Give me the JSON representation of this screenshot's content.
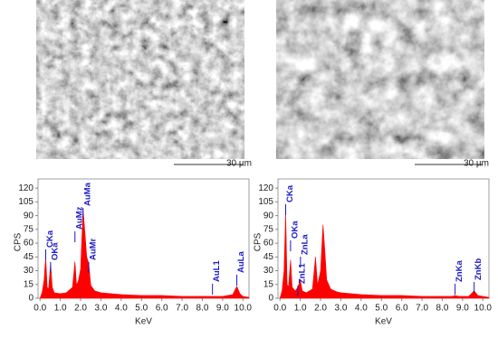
{
  "images": [
    {
      "scale_label": "30 µm"
    },
    {
      "scale_label": "30 µm"
    }
  ],
  "chart_data": [
    {
      "type": "area",
      "color": "#ff0000",
      "annotation_color": "#1a1ac8",
      "x_label": "KeV",
      "y_label": "CPS",
      "xlim": [
        -0.1,
        10.3
      ],
      "ylim": [
        0,
        130
      ],
      "xticks": [
        {
          "value": 0,
          "label": "0.0"
        },
        {
          "value": 1,
          "label": "1.0"
        },
        {
          "value": 2,
          "label": "2.0"
        },
        {
          "value": 3,
          "label": "3.0"
        },
        {
          "value": 4,
          "label": "4.0"
        },
        {
          "value": 5,
          "label": "5.0"
        },
        {
          "value": 6,
          "label": "6.0"
        },
        {
          "value": 7,
          "label": "7.0"
        },
        {
          "value": 8,
          "label": "8.0"
        },
        {
          "value": 9,
          "label": "9.0"
        },
        {
          "value": 10,
          "label": "10.0"
        }
      ],
      "yticks": [
        0,
        15,
        30,
        45,
        60,
        75,
        90,
        105,
        120
      ],
      "x": [
        0,
        0.1,
        0.2,
        0.28,
        0.35,
        0.42,
        0.52,
        0.6,
        0.7,
        1.0,
        1.3,
        1.6,
        1.72,
        1.8,
        1.9,
        2.0,
        2.12,
        2.2,
        2.3,
        2.4,
        2.5,
        2.7,
        3.0,
        3.5,
        4.0,
        5.0,
        6.0,
        7.0,
        8.0,
        8.5,
        9.0,
        9.5,
        9.7,
        9.85,
        10.0,
        10.3
      ],
      "values": [
        0,
        6,
        20,
        45,
        12,
        10,
        38,
        12,
        6,
        5,
        6,
        12,
        40,
        14,
        20,
        32,
        97,
        75,
        45,
        38,
        14,
        8,
        6,
        5,
        4,
        3,
        3,
        2,
        2,
        2,
        2,
        4,
        13,
        5,
        2,
        1
      ],
      "annotations": [
        {
          "label": "CKa",
          "x": 0.28
        },
        {
          "label": "OKa",
          "x": 0.52
        },
        {
          "label": "AuMz",
          "x": 1.72
        },
        {
          "label": "AuMa",
          "x": 2.12
        },
        {
          "label": "AuMr",
          "x": 2.4
        },
        {
          "label": "AuL1",
          "x": 8.5
        },
        {
          "label": "AuLa",
          "x": 9.7
        }
      ]
    },
    {
      "type": "area",
      "color": "#ff0000",
      "annotation_color": "#1a1ac8",
      "x_label": "KeV",
      "y_label": "CPS",
      "xlim": [
        -0.1,
        10.3
      ],
      "ylim": [
        0,
        130
      ],
      "xticks": [
        {
          "value": 0,
          "label": "0.0"
        },
        {
          "value": 1,
          "label": "1.0"
        },
        {
          "value": 2,
          "label": "2.0"
        },
        {
          "value": 3,
          "label": "3.0"
        },
        {
          "value": 4,
          "label": "4.0"
        },
        {
          "value": 5,
          "label": "5.0"
        },
        {
          "value": 6,
          "label": "6.0"
        },
        {
          "value": 7,
          "label": "7.0"
        },
        {
          "value": 8,
          "label": "8.0"
        },
        {
          "value": 9,
          "label": "9.0"
        },
        {
          "value": 10,
          "label": "10.0"
        }
      ],
      "yticks": [
        0,
        15,
        30,
        45,
        60,
        75,
        90,
        105,
        120
      ],
      "x": [
        0,
        0.1,
        0.2,
        0.28,
        0.35,
        0.42,
        0.52,
        0.6,
        0.75,
        0.88,
        1.0,
        1.1,
        1.3,
        1.6,
        1.75,
        1.85,
        2.0,
        2.12,
        2.2,
        2.3,
        2.5,
        2.8,
        3.0,
        4.0,
        5.0,
        6.0,
        7.0,
        8.0,
        8.5,
        8.63,
        8.8,
        9.3,
        9.57,
        9.75,
        10.0,
        10.3
      ],
      "values": [
        0,
        8,
        30,
        93,
        15,
        12,
        42,
        12,
        8,
        12,
        20,
        8,
        6,
        10,
        45,
        14,
        30,
        80,
        55,
        20,
        10,
        7,
        6,
        4,
        3,
        3,
        2,
        2,
        2,
        3,
        2,
        2,
        8,
        3,
        2,
        1
      ],
      "annotations": [
        {
          "label": "CKa",
          "x": 0.28
        },
        {
          "label": "OKa",
          "x": 0.52
        },
        {
          "label": "ZnL1",
          "x": 0.88
        },
        {
          "label": "ZnLa",
          "x": 1.01
        },
        {
          "label": "ZnKa",
          "x": 8.63
        },
        {
          "label": "ZnKb",
          "x": 9.57
        }
      ]
    }
  ]
}
